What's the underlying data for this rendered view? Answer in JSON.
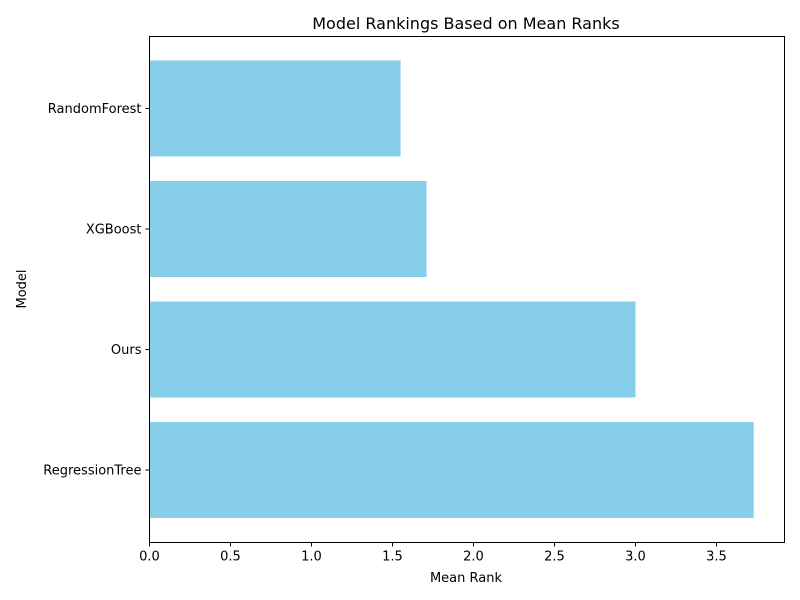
{
  "chart_data": {
    "type": "bar",
    "orientation": "horizontal",
    "title": "Model Rankings Based on Mean Ranks",
    "xlabel": "Mean Rank",
    "ylabel": "Model",
    "categories": [
      "RandomForest",
      "XGBoost",
      "Ours",
      "RegressionTree"
    ],
    "values": [
      1.55,
      1.71,
      3.0,
      3.73
    ],
    "xlim": [
      0,
      3.92
    ],
    "xticks": [
      "0.0",
      "0.5",
      "1.0",
      "1.5",
      "2.0",
      "2.5",
      "3.0",
      "3.5"
    ],
    "bar_color": "#87ceeb",
    "grid": false
  }
}
